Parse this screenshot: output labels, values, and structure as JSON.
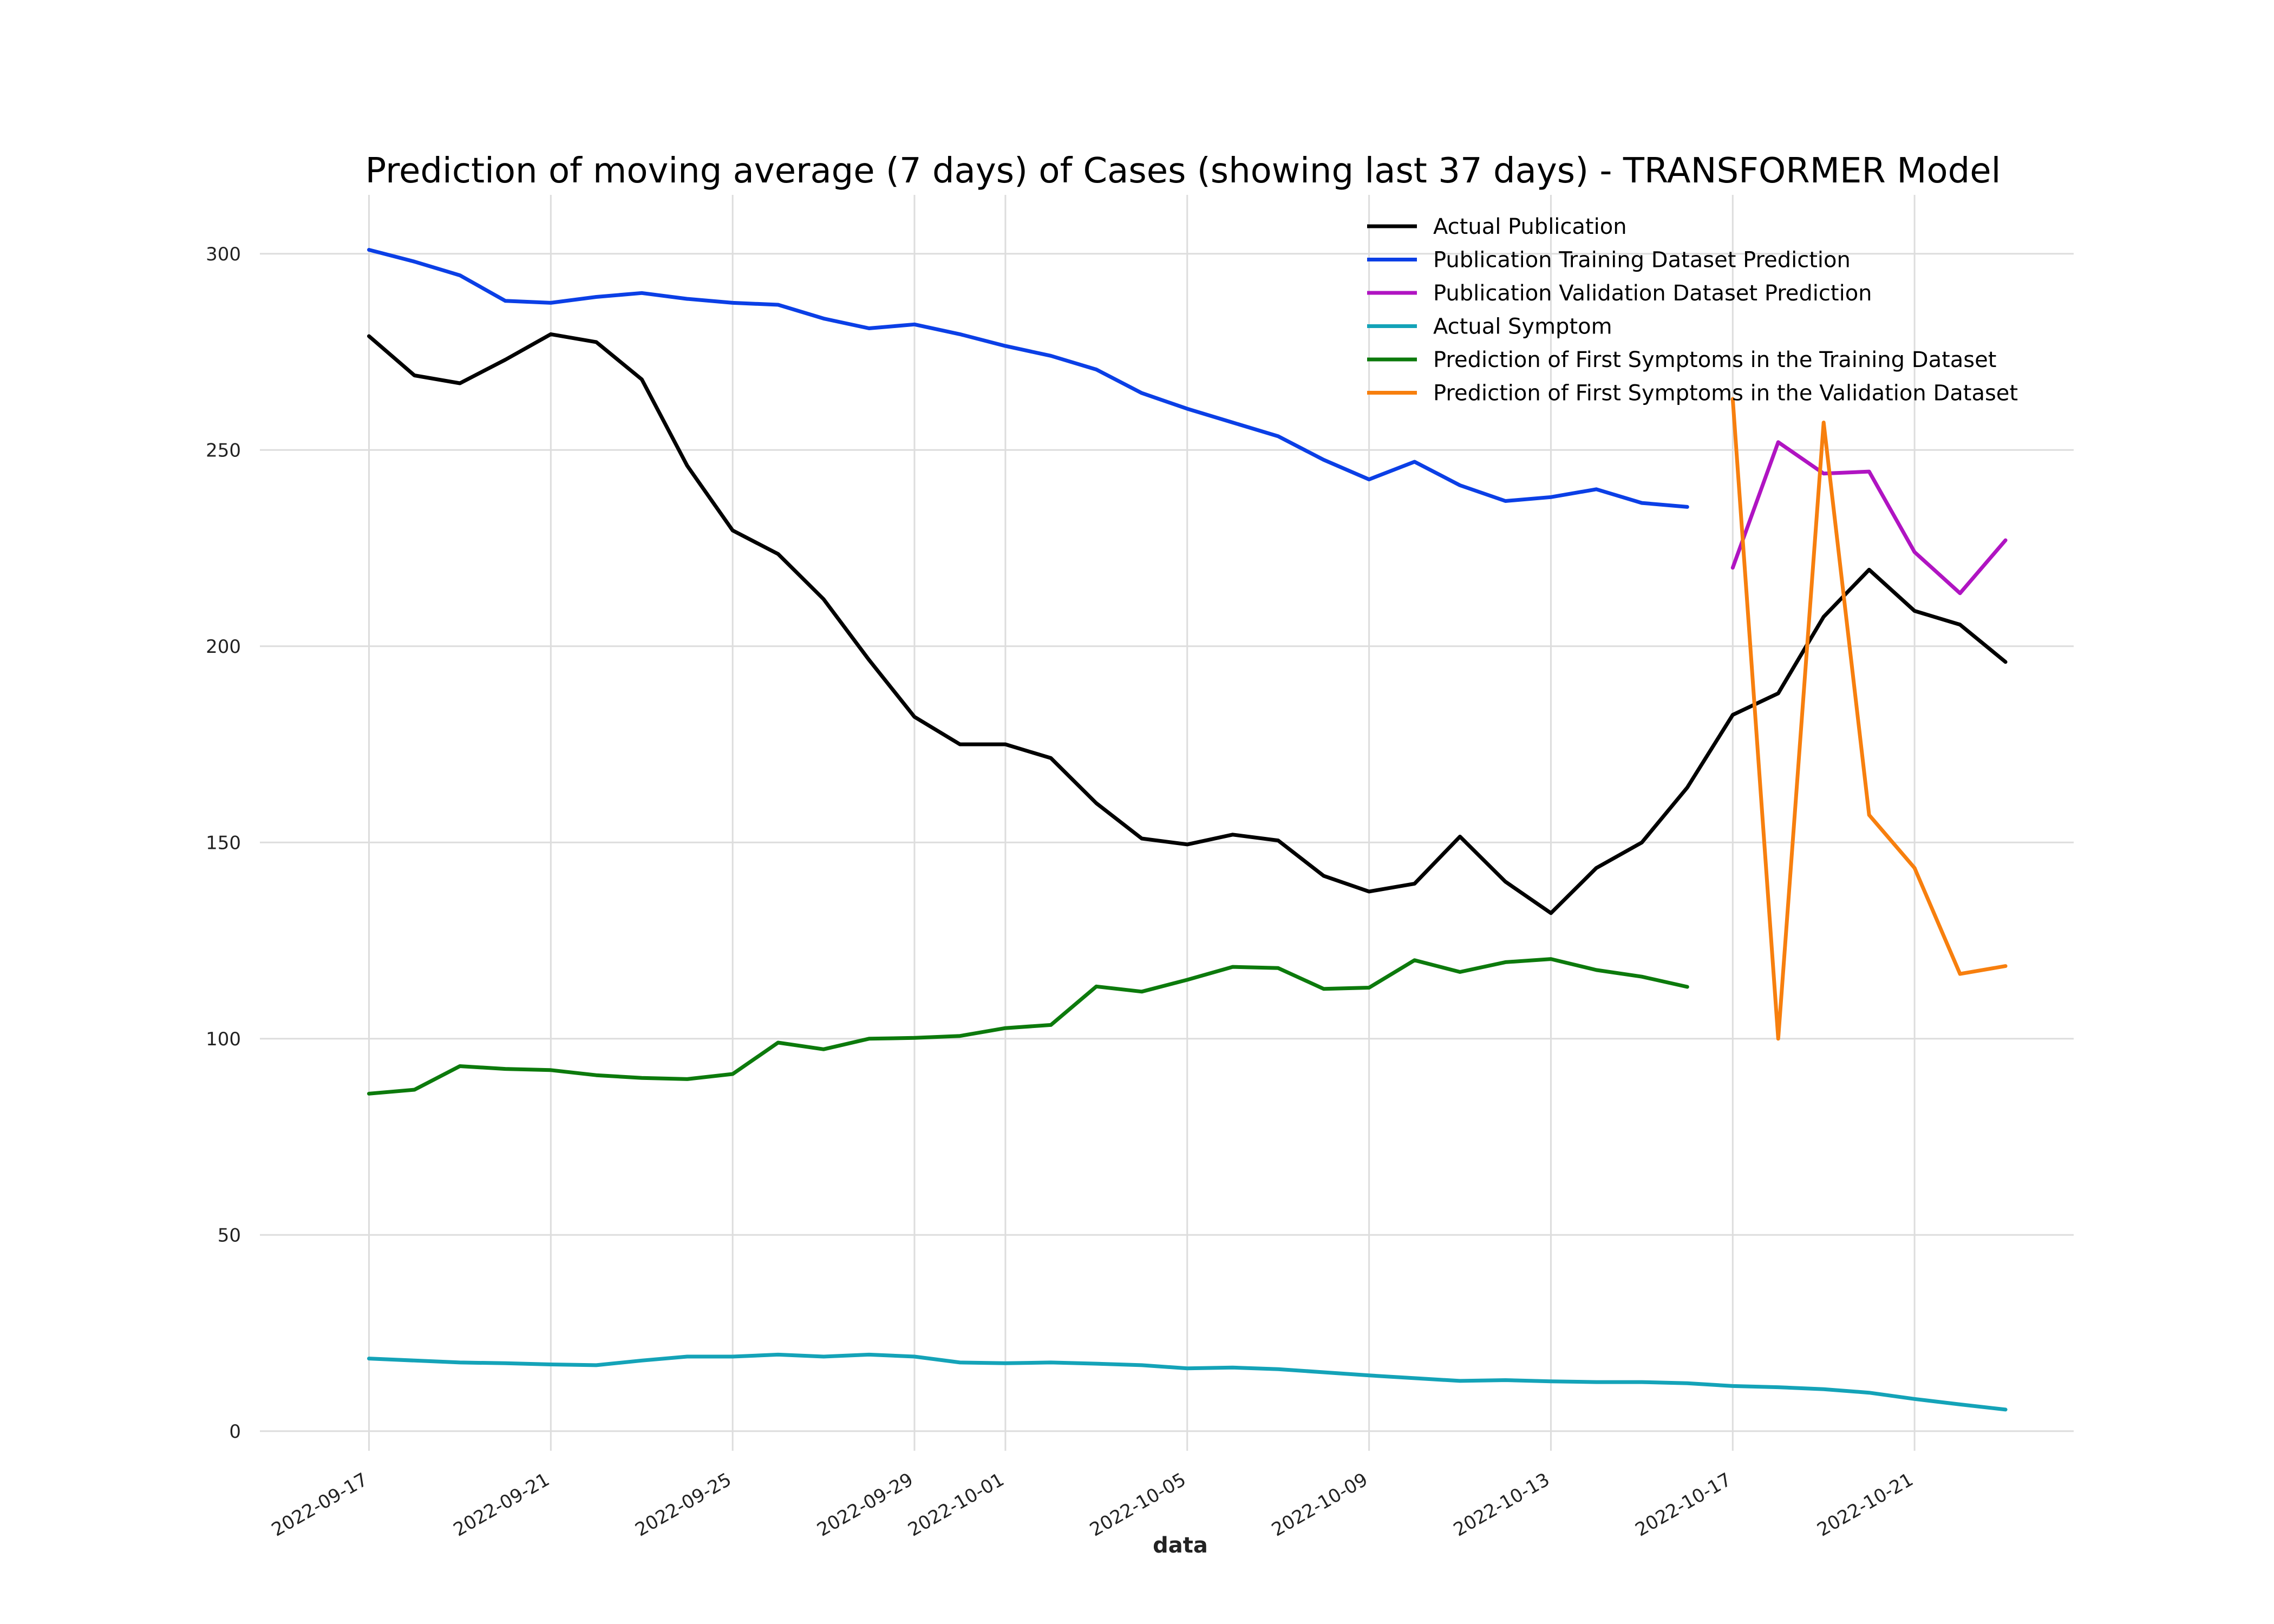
{
  "chart_data": {
    "type": "line",
    "title": "Prediction of moving average (7 days) of Cases (showing last 37 days) - TRANSFORMER Model",
    "xlabel": "data",
    "ylabel": "",
    "x_tick_labels": [
      "2022-09-17",
      "2022-09-21",
      "2022-09-25",
      "2022-09-29",
      "2022-10-01",
      "2022-10-05",
      "2022-10-09",
      "2022-10-13",
      "2022-10-17",
      "2022-10-21"
    ],
    "x_tick_days": [
      0,
      4,
      8,
      12,
      14,
      18,
      22,
      26,
      30,
      34
    ],
    "x_range_days": [
      -2.4,
      37.5
    ],
    "ylim": [
      -5,
      315
    ],
    "y_ticks": [
      0,
      50,
      100,
      150,
      200,
      250,
      300
    ],
    "grid": true,
    "legend_position": "top-right",
    "series": [
      {
        "name": "Actual Publication",
        "color": "#000000",
        "start_day": 0,
        "values": [
          279,
          269,
          267,
          273,
          279.5,
          277.5,
          268,
          246,
          229.5,
          223.5,
          212,
          196.5,
          182,
          175,
          175,
          171.5,
          160,
          151,
          149.5,
          152,
          150.5,
          141.5,
          137.5,
          139.5,
          151.5,
          140,
          132,
          143.5,
          150,
          164,
          182.5,
          188,
          207.5,
          219.5,
          209,
          205.5,
          196
        ]
      },
      {
        "name": "Publication Training Dataset Prediction",
        "color": "#0b3fe6",
        "start_day": 0,
        "values": [
          301,
          298,
          294.5,
          288,
          287.5,
          289,
          290,
          288.5,
          287.5,
          287,
          283.5,
          281,
          282,
          279.5,
          276.5,
          274,
          270.5,
          264.5,
          260.5,
          257,
          253.5,
          247.5,
          242.5,
          247,
          241,
          237,
          238,
          240,
          236.5,
          235.5
        ]
      },
      {
        "name": "Publication Validation Dataset Prediction",
        "color": "#b014c2",
        "start_day": 30,
        "values": [
          220,
          252,
          244,
          244.5,
          224,
          213.5,
          227
        ]
      },
      {
        "name": "Actual Symptom",
        "color": "#14a3b8",
        "start_day": 0,
        "values": [
          18.5,
          18,
          17.5,
          17.3,
          17,
          16.8,
          18,
          19,
          19,
          19.5,
          19,
          19.5,
          19,
          17.5,
          17.3,
          17.5,
          17.2,
          16.8,
          16,
          16.2,
          15.8,
          15,
          14.2,
          13.5,
          12.8,
          13,
          12.7,
          12.5,
          12.5,
          12.2,
          11.5,
          11.2,
          10.7,
          9.8,
          8.2,
          6.8,
          5.5
        ]
      },
      {
        "name": "Prediction of First Symptoms in the Training Dataset",
        "color": "#0c7a0c",
        "start_day": 0,
        "values": [
          86,
          87,
          93,
          92.3,
          92,
          90.7,
          90,
          89.7,
          91,
          99,
          97.3,
          100,
          100.2,
          100.7,
          102.7,
          103.5,
          113.3,
          112,
          115,
          118.3,
          118,
          112.7,
          113,
          120,
          117,
          119.5,
          120.3,
          117.5,
          115.8,
          113.2
        ]
      },
      {
        "name": "Prediction of First Symptoms in the Validation Dataset",
        "color": "#f77f0e",
        "start_day": 30,
        "values": [
          263,
          100,
          257,
          157,
          143.5,
          116.5,
          118.5
        ]
      }
    ]
  }
}
